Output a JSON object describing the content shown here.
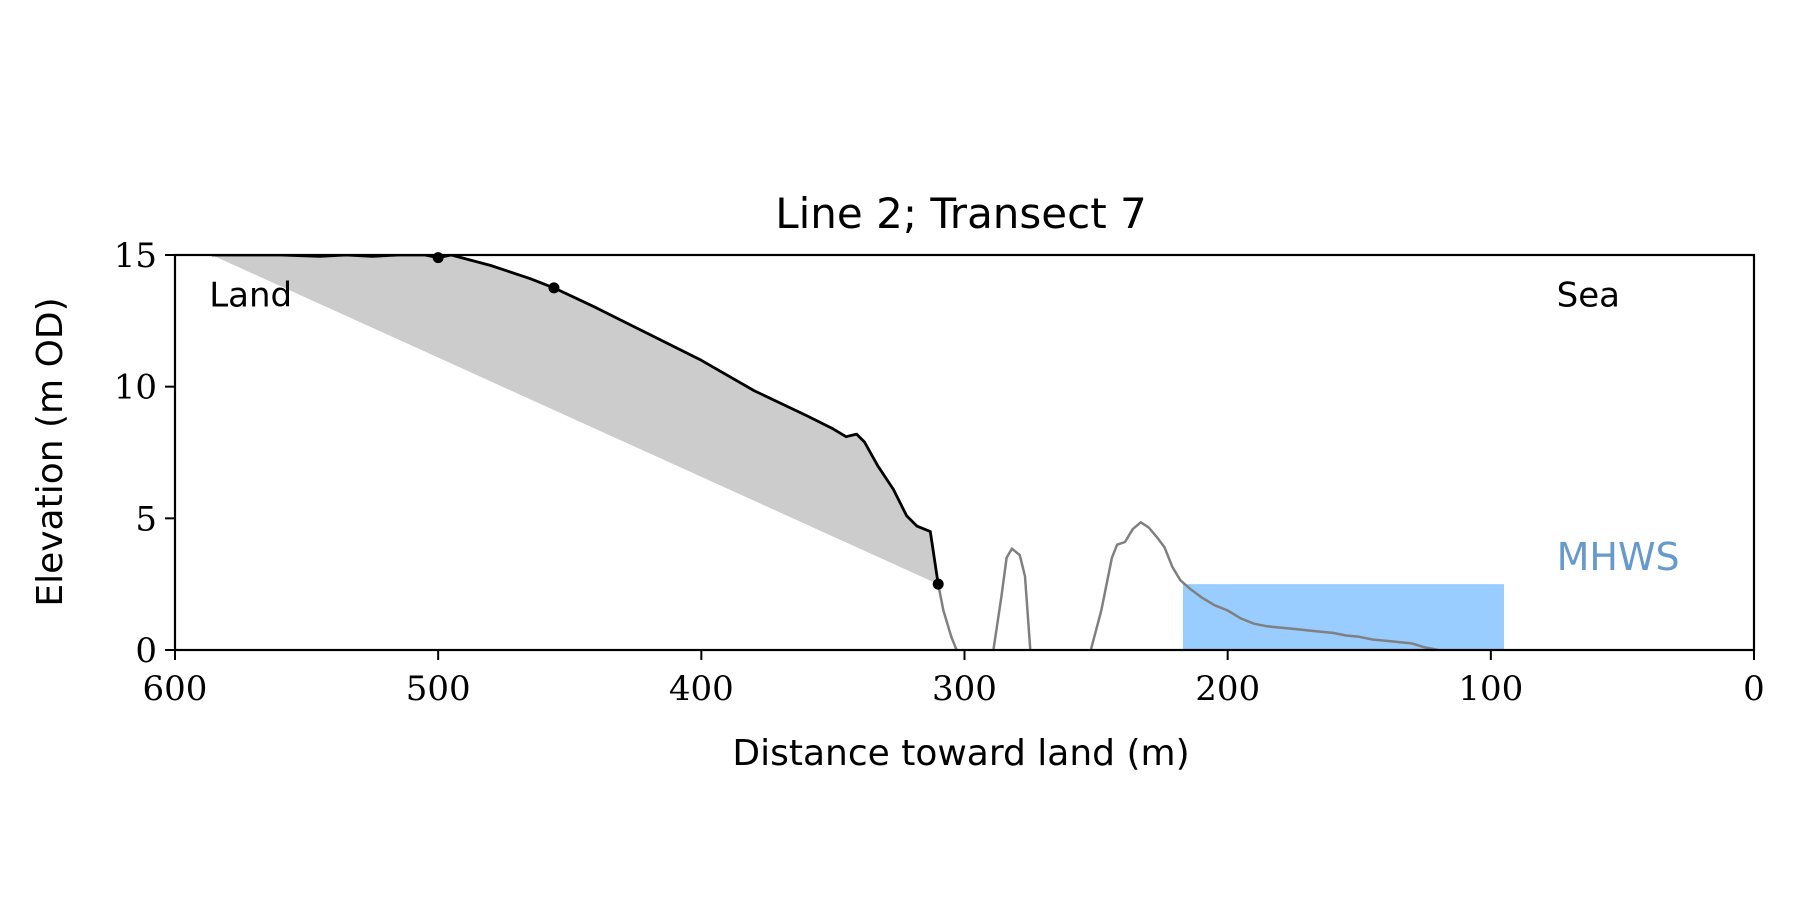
{
  "chart_data": {
    "type": "area",
    "title": "Line 2; Transect 7",
    "xlabel": "Distance toward land (m)",
    "ylabel": "Elevation (m OD)",
    "xlim": [
      600,
      0
    ],
    "ylim": [
      0,
      15
    ],
    "x_ticks": [
      600,
      500,
      400,
      300,
      200,
      100,
      0
    ],
    "y_ticks": [
      0,
      5,
      10,
      15
    ],
    "grid": false,
    "legend": "none",
    "annotations": [
      {
        "text": "Land",
        "x": 587,
        "y": 13.5
      },
      {
        "text": "Sea",
        "x": 75,
        "y": 13.5
      },
      {
        "text": "MHWS",
        "x": 75,
        "y": 3.5,
        "color": "#6699cc"
      }
    ],
    "series": [
      {
        "role": "cliff-profile",
        "color": "#000000",
        "points": [
          [
            586,
            15.0
          ],
          [
            560,
            15.0
          ],
          [
            545,
            14.95
          ],
          [
            535,
            15.0
          ],
          [
            525,
            14.95
          ],
          [
            515,
            15.0
          ],
          [
            505,
            15.0
          ],
          [
            500,
            14.9
          ],
          [
            495,
            15.0
          ],
          [
            480,
            14.6
          ],
          [
            465,
            14.1
          ],
          [
            456,
            13.75
          ],
          [
            440,
            13.0
          ],
          [
            420,
            12.0
          ],
          [
            400,
            11.0
          ],
          [
            380,
            9.85
          ],
          [
            360,
            8.9
          ],
          [
            350,
            8.4
          ],
          [
            345,
            8.1
          ],
          [
            341,
            8.2
          ],
          [
            338,
            7.9
          ],
          [
            333,
            7.0
          ],
          [
            327,
            6.1
          ],
          [
            322,
            5.1
          ],
          [
            318,
            4.7
          ],
          [
            313,
            4.5
          ],
          [
            310,
            2.5
          ]
        ]
      },
      {
        "role": "markers",
        "color": "#000000",
        "points": [
          [
            500,
            14.9
          ],
          [
            456,
            13.75
          ],
          [
            310,
            2.5
          ]
        ]
      },
      {
        "role": "foreshore-profile",
        "color": "#808080",
        "segments": [
          [
            [
              310,
              2.5
            ],
            [
              308,
              1.5
            ],
            [
              305,
              0.5
            ],
            [
              303,
              0.0
            ]
          ],
          [
            [
              289,
              0.0
            ],
            [
              286,
              2.0
            ],
            [
              284,
              3.5
            ],
            [
              282,
              3.85
            ],
            [
              279,
              3.6
            ],
            [
              277,
              2.8
            ],
            [
              275,
              0.0
            ]
          ],
          [
            [
              252,
              0.0
            ],
            [
              248,
              1.5
            ],
            [
              244,
              3.5
            ],
            [
              242,
              4.0
            ],
            [
              239,
              4.1
            ],
            [
              236,
              4.6
            ],
            [
              233,
              4.85
            ],
            [
              230,
              4.65
            ],
            [
              227,
              4.3
            ],
            [
              224,
              3.9
            ],
            [
              221,
              3.15
            ],
            [
              218,
              2.65
            ],
            [
              214,
              2.3
            ],
            [
              210,
              2.0
            ],
            [
              205,
              1.7
            ],
            [
              200,
              1.5
            ],
            [
              195,
              1.2
            ],
            [
              190,
              1.0
            ],
            [
              185,
              0.9
            ],
            [
              180,
              0.85
            ],
            [
              175,
              0.8
            ],
            [
              170,
              0.75
            ],
            [
              165,
              0.7
            ],
            [
              160,
              0.65
            ],
            [
              155,
              0.55
            ],
            [
              150,
              0.5
            ],
            [
              145,
              0.4
            ],
            [
              140,
              0.35
            ],
            [
              135,
              0.3
            ],
            [
              130,
              0.25
            ],
            [
              125,
              0.1
            ],
            [
              120,
              0.0
            ]
          ]
        ]
      }
    ],
    "regions": [
      {
        "role": "eroded-wedge",
        "color": "#cccccc",
        "polygon_from_profile": true,
        "baseline": [
          [
            586,
            15.0
          ],
          [
            310,
            2.5
          ]
        ]
      },
      {
        "role": "water-MHWS",
        "color": "#99ccff",
        "x_range": [
          217,
          95
        ],
        "level": 2.5
      }
    ]
  }
}
